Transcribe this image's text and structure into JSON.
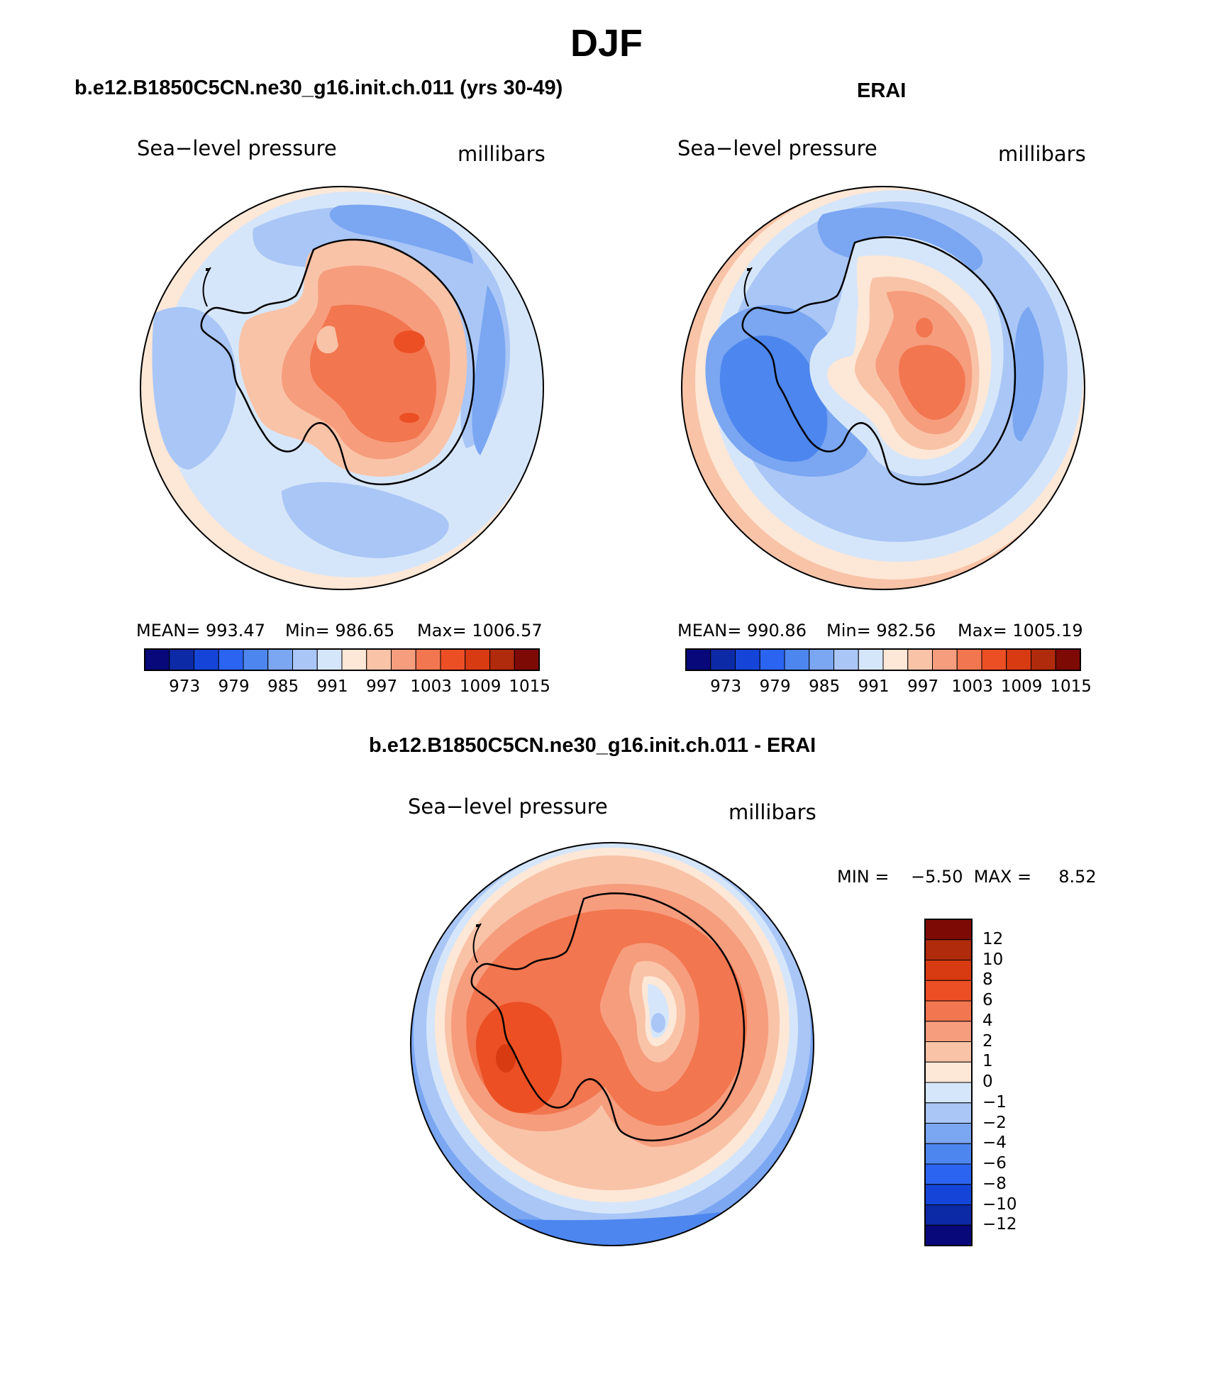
{
  "figure": {
    "title": "DJF",
    "colors": {
      "land_outline": "#000000",
      "frame": "#000000"
    }
  },
  "panels": [
    {
      "id": "model",
      "heading": "b.e12.B1850C5CN.ne30_g16.init.ch.011 (yrs 30-49)",
      "variable_label": "Sea−level pressure",
      "units_label": "millibars",
      "stats": {
        "mean": "MEAN=  993.47",
        "min": "Min=  986.65",
        "max": "Max=  1006.57"
      },
      "mean_value": 993.47,
      "min_value": 986.65,
      "max_value": 1006.57
    },
    {
      "id": "obs",
      "heading": "ERAI",
      "variable_label": "Sea−level pressure",
      "units_label": "millibars",
      "stats": {
        "mean": "MEAN=  990.86",
        "min": "Min=  982.56",
        "max": "Max=  1005.19"
      },
      "mean_value": 990.86,
      "min_value": 982.56,
      "max_value": 1005.19
    },
    {
      "id": "diff",
      "heading": "b.e12.B1850C5CN.ne30_g16.init.ch.011 - ERAI",
      "variable_label": "Sea−level pressure",
      "units_label": "millibars",
      "stats": {
        "minmax": "MIN =    −5.50  MAX =     8.52"
      },
      "min_value": -5.5,
      "max_value": 8.52
    }
  ],
  "colorbar_abs": {
    "colors": [
      "#08087a",
      "#0c2aa6",
      "#1545d8",
      "#2a64f0",
      "#4d86ee",
      "#7aa6f2",
      "#a9c6f6",
      "#d6e6fa",
      "#fde7d6",
      "#f9c3a7",
      "#f69d7e",
      "#f2764f",
      "#ec4f24",
      "#d83a12",
      "#b02a0c",
      "#7e0a06"
    ],
    "tick_labels": [
      "973",
      "979",
      "985",
      "991",
      "997",
      "1003",
      "1009",
      "1015"
    ]
  },
  "colorbar_diff": {
    "colors": [
      "#7e0a06",
      "#b02a0c",
      "#d83a12",
      "#ec4f24",
      "#f2764f",
      "#f69d7e",
      "#f9c3a7",
      "#fde7d6",
      "#d6e6fa",
      "#a9c6f6",
      "#7aa6f2",
      "#4d86ee",
      "#2a64f0",
      "#1545d8",
      "#0c2aa6",
      "#08087a"
    ],
    "tick_labels": [
      "12",
      "10",
      "8",
      "6",
      "4",
      "2",
      "1",
      "0",
      "−1",
      "−2",
      "−4",
      "−6",
      "−8",
      "−10",
      "−12"
    ]
  }
}
